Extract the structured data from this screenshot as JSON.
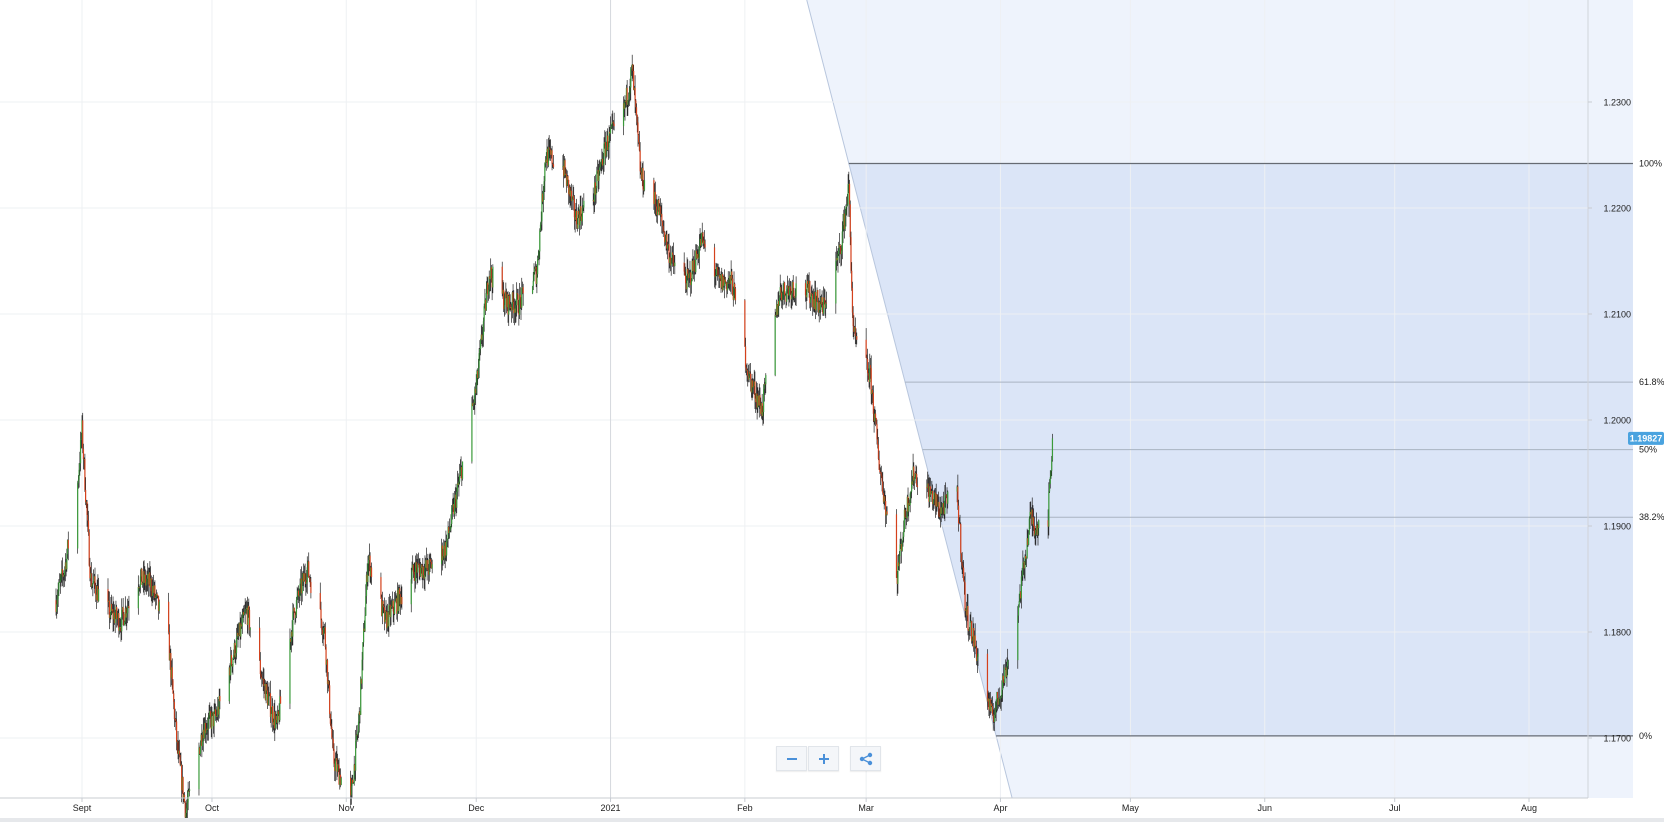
{
  "chart_data": {
    "type": "candlestick",
    "instrument_last_price": "1.19827",
    "y_ticks": [
      "1.1700",
      "1.1800",
      "1.1900",
      "1.2000",
      "1.2100",
      "1.2200",
      "1.2300"
    ],
    "y_tick_values": [
      1.17,
      1.18,
      1.19,
      1.2,
      1.21,
      1.22,
      1.23
    ],
    "ylim": [
      1.1645,
      1.2395
    ],
    "x_ticks": [
      "Sept",
      "Oct",
      "Nov",
      "Dec",
      "2021",
      "Feb",
      "Mar",
      "Apr",
      "May",
      "Jun",
      "Jul",
      "Aug"
    ],
    "x_tick_dates": [
      "2020-09-01",
      "2020-10-01",
      "2020-11-01",
      "2020-12-01",
      "2021-01-01",
      "2021-02-01",
      "2021-03-01",
      "2021-04-01",
      "2021-05-01",
      "2021-06-01",
      "2021-07-01",
      "2021-08-01"
    ],
    "last_price_value": 1.19827,
    "colors": {
      "up": "#3a9a3a",
      "down": "#d4411c",
      "wick": "#222222",
      "fib_fill": "#dbe5f7",
      "price_tag": "#4aa3df"
    },
    "price_path": [
      [
        "2020-08-26",
        1.183
      ],
      [
        "2020-08-28",
        1.186
      ],
      [
        "2020-08-31",
        1.194
      ],
      [
        "2020-09-01",
        1.199
      ],
      [
        "2020-09-03",
        1.185
      ],
      [
        "2020-09-07",
        1.182
      ],
      [
        "2020-09-10",
        1.181
      ],
      [
        "2020-09-14",
        1.185
      ],
      [
        "2020-09-17",
        1.1845
      ],
      [
        "2020-09-21",
        1.179
      ],
      [
        "2020-09-23",
        1.169
      ],
      [
        "2020-09-25",
        1.163
      ],
      [
        "2020-09-29",
        1.171
      ],
      [
        "2020-10-02",
        1.172
      ],
      [
        "2020-10-06",
        1.178
      ],
      [
        "2020-10-09",
        1.182
      ],
      [
        "2020-10-13",
        1.175
      ],
      [
        "2020-10-16",
        1.171
      ],
      [
        "2020-10-20",
        1.182
      ],
      [
        "2020-10-23",
        1.186
      ],
      [
        "2020-10-27",
        1.18
      ],
      [
        "2020-10-29",
        1.168
      ],
      [
        "2020-11-02",
        1.164
      ],
      [
        "2020-11-04",
        1.172
      ],
      [
        "2020-11-06",
        1.187
      ],
      [
        "2020-11-10",
        1.181
      ],
      [
        "2020-11-13",
        1.183
      ],
      [
        "2020-11-17",
        1.186
      ],
      [
        "2020-11-20",
        1.186
      ],
      [
        "2020-11-24",
        1.188
      ],
      [
        "2020-11-27",
        1.194
      ],
      [
        "2020-12-01",
        1.203
      ],
      [
        "2020-12-04",
        1.214
      ],
      [
        "2020-12-08",
        1.211
      ],
      [
        "2020-12-11",
        1.211
      ],
      [
        "2020-12-15",
        1.214
      ],
      [
        "2020-12-17",
        1.225
      ],
      [
        "2020-12-21",
        1.224
      ],
      [
        "2020-12-24",
        1.219
      ],
      [
        "2020-12-28",
        1.221
      ],
      [
        "2020-12-31",
        1.226
      ],
      [
        "2021-01-04",
        1.229
      ],
      [
        "2021-01-06",
        1.233
      ],
      [
        "2021-01-08",
        1.223
      ],
      [
        "2021-01-12",
        1.22
      ],
      [
        "2021-01-15",
        1.215
      ],
      [
        "2021-01-19",
        1.213
      ],
      [
        "2021-01-22",
        1.217
      ],
      [
        "2021-01-26",
        1.213
      ],
      [
        "2021-01-29",
        1.213
      ],
      [
        "2021-02-02",
        1.204
      ],
      [
        "2021-02-05",
        1.201
      ],
      [
        "2021-02-09",
        1.212
      ],
      [
        "2021-02-12",
        1.2125
      ],
      [
        "2021-02-16",
        1.212
      ],
      [
        "2021-02-19",
        1.2105
      ],
      [
        "2021-02-23",
        1.216
      ],
      [
        "2021-02-25",
        1.222
      ],
      [
        "2021-02-26",
        1.208
      ],
      [
        "2021-03-02",
        1.204
      ],
      [
        "2021-03-04",
        1.196
      ],
      [
        "2021-03-08",
        1.185
      ],
      [
        "2021-03-10",
        1.191
      ],
      [
        "2021-03-12",
        1.195
      ],
      [
        "2021-03-16",
        1.193
      ],
      [
        "2021-03-18",
        1.1915
      ],
      [
        "2021-03-22",
        1.193
      ],
      [
        "2021-03-24",
        1.182
      ],
      [
        "2021-03-26",
        1.179
      ],
      [
        "2021-03-30",
        1.172
      ],
      [
        "2021-03-31",
        1.173
      ],
      [
        "2021-04-02",
        1.176
      ],
      [
        "2021-04-05",
        1.182
      ],
      [
        "2021-04-07",
        1.188
      ],
      [
        "2021-04-08",
        1.191
      ],
      [
        "2021-04-09",
        1.19
      ],
      [
        "2021-04-12",
        1.191
      ],
      [
        "2021-04-13",
        1.19827
      ]
    ],
    "fibonacci": {
      "high": 1.2242,
      "low": 1.1702,
      "levels": [
        {
          "label": "100%",
          "value": 1.2242
        },
        {
          "label": "61.8%",
          "value": 1.20357
        },
        {
          "label": "50%",
          "value": 1.1972
        },
        {
          "label": "38.2%",
          "value": 1.19083
        },
        {
          "label": "0%",
          "value": 1.1702
        }
      ],
      "start_date": "2021-02-25",
      "end_date": "2021-03-31",
      "extend_to_date": "2021-08-25"
    }
  },
  "controls": {
    "zoom_out_icon": "minus-icon",
    "zoom_in_icon": "plus-icon",
    "share_icon": "share-icon"
  }
}
